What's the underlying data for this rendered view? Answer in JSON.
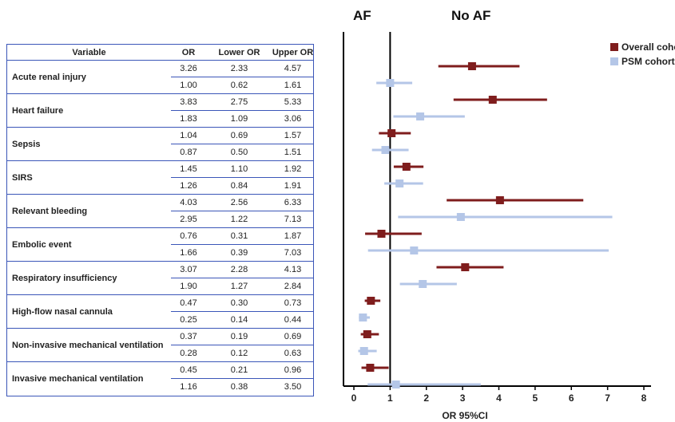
{
  "titles": {
    "left": "AF",
    "right": "No AF"
  },
  "table": {
    "headers": {
      "variable": "Variable",
      "or": "OR",
      "lower": "Lower OR",
      "upper": "Upper OR"
    },
    "groups": [
      {
        "label": "Acute renal injury",
        "rows": [
          {
            "or": "3.26",
            "lower": "2.33",
            "upper": "4.57"
          },
          {
            "or": "1.00",
            "lower": "0.62",
            "upper": "1.61"
          }
        ]
      },
      {
        "label": "Heart failure",
        "rows": [
          {
            "or": "3.83",
            "lower": "2.75",
            "upper": "5.33"
          },
          {
            "or": "1.83",
            "lower": "1.09",
            "upper": "3.06"
          }
        ]
      },
      {
        "label": "Sepsis",
        "rows": [
          {
            "or": "1.04",
            "lower": "0.69",
            "upper": "1.57"
          },
          {
            "or": "0.87",
            "lower": "0.50",
            "upper": "1.51"
          }
        ]
      },
      {
        "label": "SIRS",
        "rows": [
          {
            "or": "1.45",
            "lower": "1.10",
            "upper": "1.92"
          },
          {
            "or": "1.26",
            "lower": "0.84",
            "upper": "1.91"
          }
        ]
      },
      {
        "label": "Relevant bleeding",
        "rows": [
          {
            "or": "4.03",
            "lower": "2.56",
            "upper": "6.33"
          },
          {
            "or": "2.95",
            "lower": "1.22",
            "upper": "7.13"
          }
        ]
      },
      {
        "label": "Embolic event",
        "rows": [
          {
            "or": "0.76",
            "lower": "0.31",
            "upper": "1.87"
          },
          {
            "or": "1.66",
            "lower": "0.39",
            "upper": "7.03"
          }
        ]
      },
      {
        "label": "Respiratory insufficiency",
        "rows": [
          {
            "or": "3.07",
            "lower": "2.28",
            "upper": "4.13"
          },
          {
            "or": "1.90",
            "lower": "1.27",
            "upper": "2.84"
          }
        ]
      },
      {
        "label": "High-flow nasal cannula",
        "rows": [
          {
            "or": "0.47",
            "lower": "0.30",
            "upper": "0.73"
          },
          {
            "or": "0.25",
            "lower": "0.14",
            "upper": "0.44"
          }
        ]
      },
      {
        "label": "Non-invasive mechanical ventilation",
        "rows": [
          {
            "or": "0.37",
            "lower": "0.19",
            "upper": "0.69"
          },
          {
            "or": "0.28",
            "lower": "0.12",
            "upper": "0.63"
          }
        ]
      },
      {
        "label": "Invasive mechanical ventilation",
        "rows": [
          {
            "or": "0.45",
            "lower": "0.21",
            "upper": "0.96"
          },
          {
            "or": "1.16",
            "lower": "0.38",
            "upper": "3.50"
          }
        ]
      }
    ]
  },
  "legend": [
    {
      "name": "Overall cohort",
      "color": "#7f1d1d"
    },
    {
      "name": "PSM cohort",
      "color": "#b4c6e7"
    }
  ],
  "chart_data": {
    "type": "forest",
    "xlabel": "OR 95%CI",
    "xlim": [
      0,
      8
    ],
    "xticks": [
      "0",
      "1",
      "2",
      "3",
      "4",
      "5",
      "6",
      "7",
      "8"
    ],
    "reference_line": 1,
    "legend_position": "top-right",
    "series": [
      {
        "name": "Overall cohort",
        "color": "#7f1d1d",
        "points": [
          {
            "category": "Acute renal injury",
            "or": 3.26,
            "lower": 2.33,
            "upper": 4.57
          },
          {
            "category": "Heart failure",
            "or": 3.83,
            "lower": 2.75,
            "upper": 5.33
          },
          {
            "category": "Sepsis",
            "or": 1.04,
            "lower": 0.69,
            "upper": 1.57
          },
          {
            "category": "SIRS",
            "or": 1.45,
            "lower": 1.1,
            "upper": 1.92
          },
          {
            "category": "Relevant bleeding",
            "or": 4.03,
            "lower": 2.56,
            "upper": 6.33
          },
          {
            "category": "Embolic event",
            "or": 0.76,
            "lower": 0.31,
            "upper": 1.87
          },
          {
            "category": "Respiratory insufficiency",
            "or": 3.07,
            "lower": 2.28,
            "upper": 4.13
          },
          {
            "category": "High-flow nasal cannula",
            "or": 0.47,
            "lower": 0.3,
            "upper": 0.73
          },
          {
            "category": "Non-invasive mechanical ventilation",
            "or": 0.37,
            "lower": 0.19,
            "upper": 0.69
          },
          {
            "category": "Invasive mechanical ventilation",
            "or": 0.45,
            "lower": 0.21,
            "upper": 0.96
          }
        ]
      },
      {
        "name": "PSM cohort",
        "color": "#b4c6e7",
        "points": [
          {
            "category": "Acute renal injury",
            "or": 1.0,
            "lower": 0.62,
            "upper": 1.61
          },
          {
            "category": "Heart failure",
            "or": 1.83,
            "lower": 1.09,
            "upper": 3.06
          },
          {
            "category": "Sepsis",
            "or": 0.87,
            "lower": 0.5,
            "upper": 1.51
          },
          {
            "category": "SIRS",
            "or": 1.26,
            "lower": 0.84,
            "upper": 1.91
          },
          {
            "category": "Relevant bleeding",
            "or": 2.95,
            "lower": 1.22,
            "upper": 7.13
          },
          {
            "category": "Embolic event",
            "or": 1.66,
            "lower": 0.39,
            "upper": 7.03
          },
          {
            "category": "Respiratory insufficiency",
            "or": 1.9,
            "lower": 1.27,
            "upper": 2.84
          },
          {
            "category": "High-flow nasal cannula",
            "or": 0.25,
            "lower": 0.14,
            "upper": 0.44
          },
          {
            "category": "Non-invasive mechanical ventilation",
            "or": 0.28,
            "lower": 0.12,
            "upper": 0.63
          },
          {
            "category": "Invasive mechanical ventilation",
            "or": 1.16,
            "lower": 0.38,
            "upper": 3.5
          }
        ]
      }
    ]
  }
}
